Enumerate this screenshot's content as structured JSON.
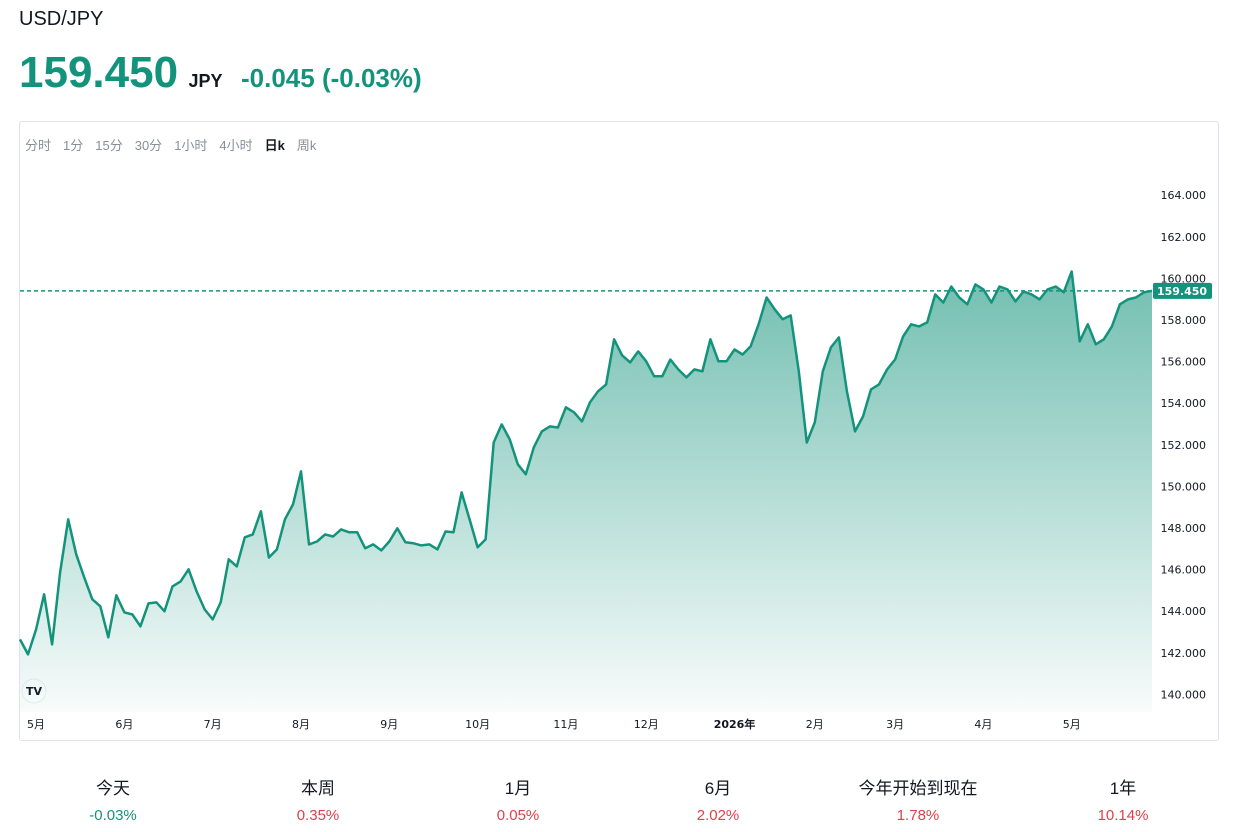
{
  "header": {
    "symbol": "USD/JPY",
    "price": "159.450",
    "currency": "JPY",
    "change": "-0.045 (-0.03%)"
  },
  "tabs": {
    "items": [
      "分时",
      "1分",
      "15分",
      "30分",
      "1小时",
      "4小时",
      "日k",
      "周k"
    ],
    "active": 6
  },
  "chart_data": {
    "type": "area",
    "color": "#13937c",
    "values": [
      142.69,
      141.97,
      143.17,
      144.86,
      142.45,
      145.91,
      148.46,
      146.78,
      145.67,
      144.62,
      144.28,
      142.79,
      144.81,
      143.99,
      143.89,
      143.32,
      144.42,
      144.47,
      144.04,
      145.24,
      145.48,
      146.06,
      145.0,
      144.13,
      143.65,
      144.47,
      146.54,
      146.2,
      147.6,
      147.74,
      148.85,
      146.63,
      147.02,
      148.46,
      149.18,
      150.77,
      147.26,
      147.4,
      147.74,
      147.64,
      147.98,
      147.84,
      147.84,
      147.07,
      147.26,
      146.97,
      147.4,
      148.03,
      147.36,
      147.31,
      147.21,
      147.26,
      147.02,
      147.88,
      147.84,
      149.76,
      148.46,
      147.12,
      147.5,
      152.16,
      153.03,
      152.31,
      151.11,
      150.63,
      151.92,
      152.69,
      152.93,
      152.88,
      153.85,
      153.61,
      153.17,
      154.09,
      154.62,
      154.95,
      157.12,
      156.35,
      156.01,
      156.54,
      156.06,
      155.34,
      155.34,
      156.15,
      155.67,
      155.29,
      155.67,
      155.58,
      157.12,
      156.06,
      156.06,
      156.63,
      156.39,
      156.78,
      157.84,
      159.13,
      158.56,
      158.08,
      158.27,
      155.58,
      152.16,
      153.13,
      155.58,
      156.73,
      157.21,
      154.62,
      152.69,
      153.41,
      154.71,
      154.95,
      155.67,
      156.15,
      157.26,
      157.84,
      157.74,
      157.93,
      159.28,
      158.89,
      159.66,
      159.13,
      158.8,
      159.76,
      159.52,
      158.89,
      159.66,
      159.52,
      158.94,
      159.42,
      159.28,
      159.04,
      159.52,
      159.66,
      159.38,
      160.38,
      157.02,
      157.84,
      156.88,
      157.12,
      157.74,
      158.8,
      159.04,
      159.13,
      159.38,
      159.45
    ],
    "current": {
      "value": 159.45,
      "label": "159.450"
    },
    "ylim": [
      139.2,
      165.5
    ],
    "yticks": [
      {
        "value": 140,
        "label": "140.000"
      },
      {
        "value": 142,
        "label": "142.000"
      },
      {
        "value": 144,
        "label": "144.000"
      },
      {
        "value": 146,
        "label": "146.000"
      },
      {
        "value": 148,
        "label": "148.000"
      },
      {
        "value": 150,
        "label": "150.000"
      },
      {
        "value": 152,
        "label": "152.000"
      },
      {
        "value": 154,
        "label": "154.000"
      },
      {
        "value": 156,
        "label": "156.000"
      },
      {
        "value": 158,
        "label": "158.000"
      },
      {
        "value": 160,
        "label": "160.000"
      },
      {
        "value": 162,
        "label": "162.000"
      },
      {
        "value": 164,
        "label": "164.000"
      }
    ],
    "xticks": [
      {
        "value": 2,
        "label": "5月"
      },
      {
        "value": 13,
        "label": "6月"
      },
      {
        "value": 24,
        "label": "7月"
      },
      {
        "value": 35,
        "label": "8月"
      },
      {
        "value": 46,
        "label": "9月"
      },
      {
        "value": 57,
        "label": "10月"
      },
      {
        "value": 68,
        "label": "11月"
      },
      {
        "value": 78,
        "label": "12月"
      },
      {
        "value": 89,
        "label": "2026年",
        "bold": true
      },
      {
        "value": 99,
        "label": "2月"
      },
      {
        "value": 109,
        "label": "3月"
      },
      {
        "value": 120,
        "label": "4月"
      },
      {
        "value": 131,
        "label": "5月"
      }
    ]
  },
  "stats": [
    {
      "label": "今天",
      "value": "-0.03%",
      "color": "#13937c"
    },
    {
      "label": "本周",
      "value": "0.35%",
      "color": "#e0404a"
    },
    {
      "label": "1月",
      "value": "0.05%",
      "color": "#e0404a"
    },
    {
      "label": "6月",
      "value": "2.02%",
      "color": "#e0404a"
    },
    {
      "label": "今年开始到现在",
      "value": "1.78%",
      "color": "#e0404a"
    },
    {
      "label": "1年",
      "value": "10.14%",
      "color": "#e0404a"
    }
  ]
}
